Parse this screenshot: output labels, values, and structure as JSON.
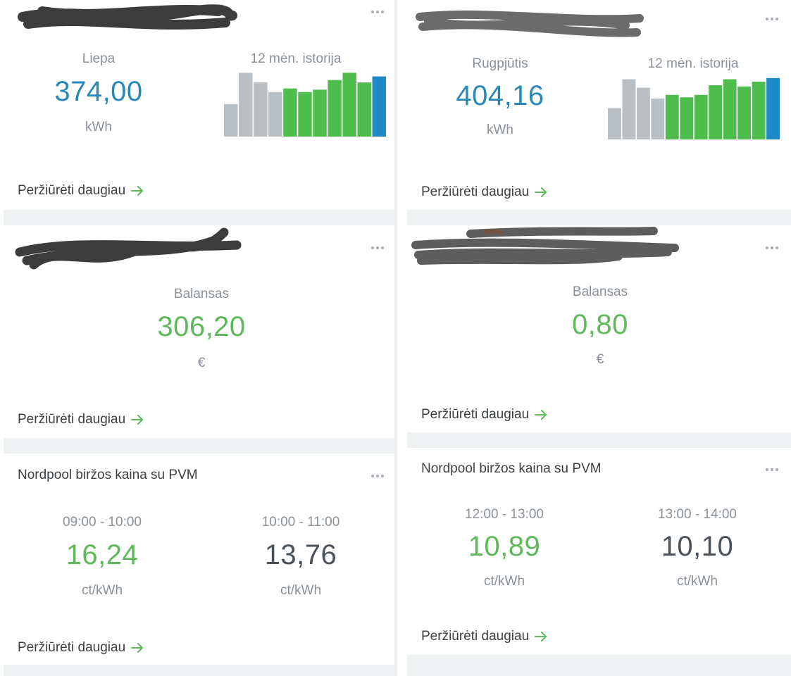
{
  "colors": {
    "blue": "#2889b7",
    "green": "#5fb85a",
    "gray": "#b9bfc2",
    "bar_green": "#4fbd4d",
    "bar_blue": "#1e88c8"
  },
  "more_icon": "ellipsis-icon",
  "link_icon": "arrow-right-icon",
  "left": {
    "consumption": {
      "month": "Liepa",
      "value": "374,00",
      "unit": "kWh",
      "history_label": "12 mėn. istorija",
      "link": "Peržiūrėti daugiau",
      "chart_data": {
        "type": "bar",
        "values": [
          27,
          53,
          45,
          37,
          40,
          37,
          39,
          47,
          53,
          45,
          50
        ],
        "colors": [
          "gray",
          "gray",
          "gray",
          "gray",
          "green",
          "green",
          "green",
          "green",
          "green",
          "green",
          "blue"
        ],
        "ylim": [
          0,
          55
        ]
      }
    },
    "balance": {
      "label": "Balansas",
      "value": "306,20",
      "unit": "€",
      "link": "Peržiūrėti daugiau"
    },
    "nordpool": {
      "title": "Nordpool biržos kaina su PVM",
      "slots": [
        {
          "time": "09:00 - 10:00",
          "value": "16,24",
          "unit": "ct/kWh"
        },
        {
          "time": "10:00 - 11:00",
          "value": "13,76",
          "unit": "ct/kWh"
        }
      ],
      "link": "Peržiūrėti daugiau"
    }
  },
  "right": {
    "consumption": {
      "month": "Rugpjūtis",
      "value": "404,16",
      "unit": "kWh",
      "history_label": "12 mėn. istorija",
      "link": "Peržiūrėti daugiau",
      "chart_data": {
        "type": "bar",
        "values": [
          26,
          50,
          43,
          34,
          37,
          35,
          37,
          45,
          50,
          44,
          48,
          51
        ],
        "colors": [
          "gray",
          "gray",
          "gray",
          "gray",
          "green",
          "green",
          "green",
          "green",
          "green",
          "green",
          "green",
          "blue"
        ],
        "ylim": [
          0,
          55
        ]
      }
    },
    "balance": {
      "label": "Balansas",
      "value": "0,80",
      "unit": "€",
      "link": "Peržiūrėti daugiau"
    },
    "nordpool": {
      "title": "Nordpool biržos kaina su PVM",
      "slots": [
        {
          "time": "12:00 - 13:00",
          "value": "10,89",
          "unit": "ct/kWh"
        },
        {
          "time": "13:00 - 14:00",
          "value": "10,10",
          "unit": "ct/kWh"
        }
      ],
      "link": "Peržiūrėti daugiau"
    }
  }
}
